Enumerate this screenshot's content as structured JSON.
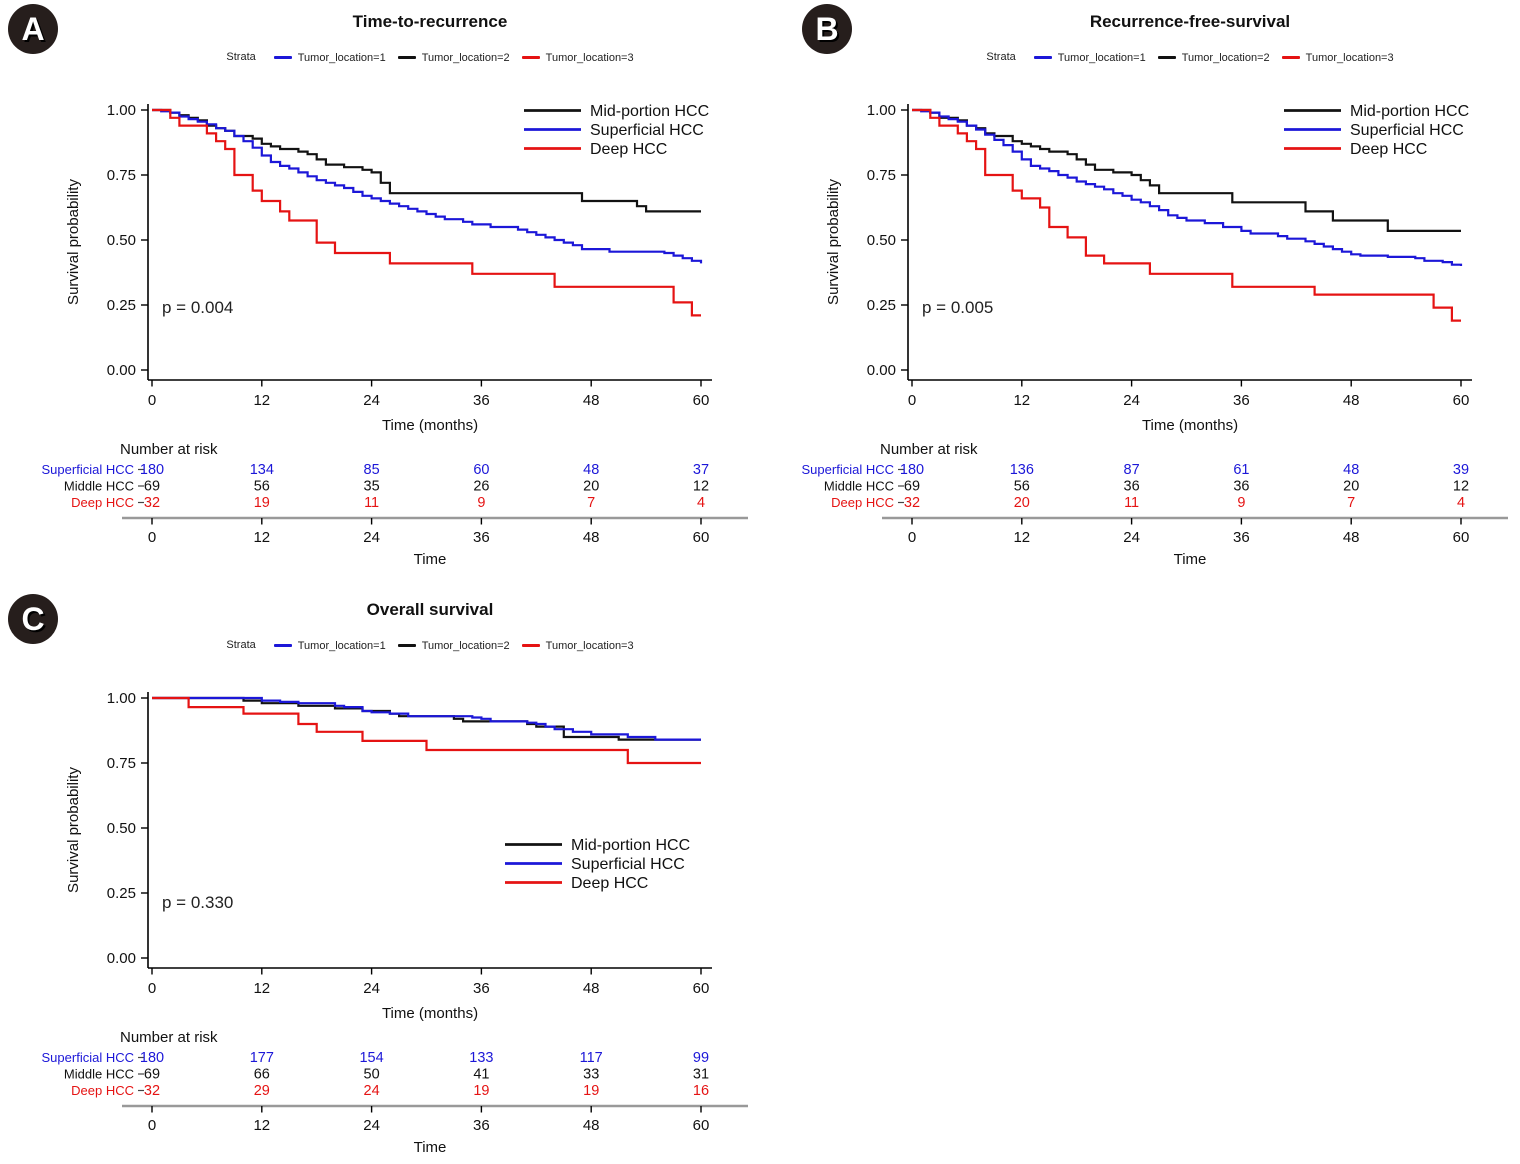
{
  "figure": {
    "background": "#ffffff",
    "colors": {
      "superficial": "#1c17d8",
      "mid_portion": "#121212",
      "deep": "#e51313",
      "table_rule": "#999999"
    }
  },
  "panels": [
    {
      "badge": "A",
      "strata_label": "Strata",
      "strata": [
        {
          "label": "Tumor_location=1",
          "color": "#1c17d8"
        },
        {
          "label": "Tumor_location=2",
          "color": "#121212"
        },
        {
          "label": "Tumor_location=3",
          "color": "#e51313"
        }
      ]
    },
    {
      "badge": "B",
      "strata_label": "Strata",
      "strata": [
        {
          "label": "Tumor_location=1",
          "color": "#1c17d8"
        },
        {
          "label": "Tumor_location=2",
          "color": "#121212"
        },
        {
          "label": "Tumor_location=3",
          "color": "#e51313"
        }
      ]
    },
    {
      "badge": "C",
      "strata_label": "Strata",
      "strata": [
        {
          "label": "Tumor_location=1",
          "color": "#1c17d8"
        },
        {
          "label": "Tumor_location=2",
          "color": "#121212"
        },
        {
          "label": "Tumor_location=3",
          "color": "#e51313"
        }
      ]
    }
  ],
  "chart_data": [
    {
      "id": "A",
      "type": "line",
      "step": true,
      "title": "Time-to-recurrence",
      "xlabel": "Time (months)",
      "ylabel": "Survival probability",
      "xlim": [
        0,
        60
      ],
      "ylim": [
        0,
        1
      ],
      "xticks": [
        0,
        12,
        24,
        36,
        48,
        60
      ],
      "ytick_labels": [
        "1.00",
        "0.75",
        "0.50",
        "0.25",
        "0.00"
      ],
      "p_value": "p = 0.004",
      "legend_position": "top-right",
      "series": [
        {
          "name": "Mid-portion HCC",
          "color": "#121212",
          "x": [
            0,
            2,
            3,
            4,
            5,
            6,
            7,
            8,
            9,
            11,
            12,
            13,
            14,
            16,
            17,
            18,
            19,
            21,
            23,
            24,
            25,
            26,
            47,
            53,
            54,
            60
          ],
          "y": [
            1.0,
            0.99,
            0.98,
            0.97,
            0.96,
            0.94,
            0.93,
            0.92,
            0.9,
            0.89,
            0.87,
            0.86,
            0.85,
            0.84,
            0.83,
            0.81,
            0.79,
            0.78,
            0.77,
            0.76,
            0.72,
            0.68,
            0.65,
            0.63,
            0.61,
            0.61
          ]
        },
        {
          "name": "Superficial HCC",
          "color": "#1c17d8",
          "x": [
            0,
            1,
            2,
            3,
            4,
            5,
            6,
            7,
            8,
            9,
            10,
            11,
            12,
            13,
            14,
            15,
            16,
            17,
            18,
            19,
            20,
            21,
            22,
            23,
            24,
            25,
            26,
            27,
            28,
            29,
            30,
            31,
            32,
            34,
            35,
            37,
            40,
            41,
            42,
            43,
            44,
            45,
            46,
            47,
            50,
            56,
            57,
            58,
            59,
            60
          ],
          "y": [
            1.0,
            0.995,
            0.99,
            0.975,
            0.965,
            0.955,
            0.945,
            0.93,
            0.92,
            0.9,
            0.88,
            0.855,
            0.825,
            0.8,
            0.785,
            0.775,
            0.76,
            0.745,
            0.73,
            0.72,
            0.71,
            0.7,
            0.685,
            0.67,
            0.66,
            0.65,
            0.64,
            0.63,
            0.62,
            0.61,
            0.6,
            0.59,
            0.58,
            0.57,
            0.56,
            0.55,
            0.54,
            0.53,
            0.52,
            0.51,
            0.5,
            0.49,
            0.48,
            0.465,
            0.455,
            0.45,
            0.44,
            0.43,
            0.42,
            0.41
          ]
        },
        {
          "name": "Deep HCC",
          "color": "#e51313",
          "x": [
            0,
            2,
            3,
            6,
            7,
            8,
            9,
            11,
            12,
            14,
            15,
            18,
            20,
            26,
            35,
            44,
            57,
            59,
            60
          ],
          "y": [
            1.0,
            0.97,
            0.94,
            0.91,
            0.88,
            0.85,
            0.75,
            0.69,
            0.65,
            0.61,
            0.575,
            0.49,
            0.45,
            0.41,
            0.37,
            0.32,
            0.26,
            0.21,
            0.21
          ]
        }
      ],
      "risk_table": {
        "heading": "Number at risk",
        "xlabel": "Time",
        "xticks": [
          0,
          12,
          24,
          36,
          48,
          60
        ],
        "rows": [
          {
            "label": "Superficial HCC",
            "color": "#1c17d8",
            "values": [
              180,
              134,
              85,
              60,
              48,
              37
            ]
          },
          {
            "label": "Middle HCC",
            "color": "#121212",
            "values": [
              69,
              56,
              35,
              26,
              20,
              12
            ]
          },
          {
            "label": "Deep HCC",
            "color": "#e51313",
            "values": [
              32,
              19,
              11,
              9,
              7,
              4
            ]
          }
        ]
      }
    },
    {
      "id": "B",
      "type": "line",
      "step": true,
      "title": "Recurrence-free-survival",
      "xlabel": "Time (months)",
      "ylabel": "Survival probability",
      "xlim": [
        0,
        60
      ],
      "ylim": [
        0,
        1
      ],
      "xticks": [
        0,
        12,
        24,
        36,
        48,
        60
      ],
      "ytick_labels": [
        "1.00",
        "0.75",
        "0.50",
        "0.25",
        "0.00"
      ],
      "p_value": "p = 0.005",
      "legend_position": "top-right",
      "series": [
        {
          "name": "Mid-portion HCC",
          "color": "#121212",
          "x": [
            0,
            2,
            3,
            5,
            6,
            7,
            8,
            9,
            11,
            12,
            13,
            14,
            15,
            17,
            18,
            19,
            20,
            22,
            24,
            25,
            26,
            27,
            35,
            43,
            46,
            52,
            60
          ],
          "y": [
            1.0,
            0.99,
            0.97,
            0.96,
            0.94,
            0.93,
            0.91,
            0.9,
            0.88,
            0.87,
            0.86,
            0.85,
            0.84,
            0.83,
            0.81,
            0.79,
            0.77,
            0.76,
            0.75,
            0.73,
            0.71,
            0.68,
            0.645,
            0.61,
            0.575,
            0.535,
            0.535
          ]
        },
        {
          "name": "Superficial HCC",
          "color": "#1c17d8",
          "x": [
            0,
            1,
            2,
            3,
            4,
            5,
            6,
            7,
            8,
            9,
            10,
            11,
            12,
            13,
            14,
            15,
            16,
            17,
            18,
            19,
            20,
            21,
            22,
            23,
            24,
            25,
            26,
            27,
            28,
            29,
            30,
            32,
            34,
            36,
            37,
            40,
            41,
            43,
            44,
            45,
            46,
            47,
            48,
            49,
            52,
            55,
            56,
            58,
            59,
            60
          ],
          "y": [
            1.0,
            0.995,
            0.99,
            0.975,
            0.965,
            0.955,
            0.94,
            0.925,
            0.905,
            0.885,
            0.865,
            0.84,
            0.81,
            0.785,
            0.775,
            0.765,
            0.75,
            0.74,
            0.725,
            0.715,
            0.705,
            0.695,
            0.68,
            0.67,
            0.655,
            0.645,
            0.63,
            0.615,
            0.595,
            0.585,
            0.575,
            0.565,
            0.55,
            0.535,
            0.525,
            0.515,
            0.505,
            0.495,
            0.485,
            0.475,
            0.465,
            0.455,
            0.445,
            0.44,
            0.435,
            0.43,
            0.42,
            0.415,
            0.405,
            0.4
          ]
        },
        {
          "name": "Deep HCC",
          "color": "#e51313",
          "x": [
            0,
            2,
            3,
            5,
            6,
            7,
            8,
            11,
            12,
            14,
            15,
            17,
            19,
            21,
            26,
            35,
            44,
            57,
            59,
            60
          ],
          "y": [
            1.0,
            0.97,
            0.94,
            0.91,
            0.88,
            0.85,
            0.75,
            0.69,
            0.66,
            0.625,
            0.55,
            0.51,
            0.44,
            0.41,
            0.37,
            0.32,
            0.29,
            0.24,
            0.19,
            0.19
          ]
        }
      ],
      "risk_table": {
        "heading": "Number at risk",
        "xlabel": "Time",
        "xticks": [
          0,
          12,
          24,
          36,
          48,
          60
        ],
        "rows": [
          {
            "label": "Superficial HCC",
            "color": "#1c17d8",
            "values": [
              180,
              136,
              87,
              61,
              48,
              39
            ]
          },
          {
            "label": "Middle HCC",
            "color": "#121212",
            "values": [
              69,
              56,
              36,
              36,
              20,
              12
            ]
          },
          {
            "label": "Deep HCC",
            "color": "#e51313",
            "values": [
              32,
              20,
              11,
              9,
              7,
              4
            ]
          }
        ]
      }
    },
    {
      "id": "C",
      "type": "line",
      "step": true,
      "title": "Overall survival",
      "xlabel": "Time (months)",
      "ylabel": "Survival probability",
      "xlim": [
        0,
        60
      ],
      "ylim": [
        0,
        1
      ],
      "xticks": [
        0,
        12,
        24,
        36,
        48,
        60
      ],
      "ytick_labels": [
        "1.00",
        "0.75",
        "0.50",
        "0.25",
        "0.00"
      ],
      "p_value": "p = 0.330",
      "legend_position": "middle-right",
      "series": [
        {
          "name": "Mid-portion HCC",
          "color": "#121212",
          "x": [
            0,
            10,
            12,
            16,
            20,
            23,
            26,
            27,
            33,
            34,
            41,
            42,
            45,
            51,
            60
          ],
          "y": [
            1.0,
            0.99,
            0.98,
            0.97,
            0.96,
            0.95,
            0.94,
            0.93,
            0.92,
            0.91,
            0.9,
            0.89,
            0.85,
            0.84,
            0.84
          ]
        },
        {
          "name": "Superficial HCC",
          "color": "#1c17d8",
          "x": [
            0,
            12,
            14,
            16,
            20,
            21,
            23,
            24,
            26,
            28,
            35,
            36,
            37,
            41,
            42,
            43,
            44,
            46,
            48,
            52,
            55,
            60
          ],
          "y": [
            1.0,
            0.99,
            0.985,
            0.98,
            0.97,
            0.965,
            0.95,
            0.945,
            0.94,
            0.93,
            0.925,
            0.92,
            0.91,
            0.905,
            0.9,
            0.89,
            0.88,
            0.87,
            0.86,
            0.85,
            0.84,
            0.84
          ]
        },
        {
          "name": "Deep HCC",
          "color": "#e51313",
          "x": [
            0,
            4,
            10,
            16,
            18,
            23,
            30,
            52,
            60
          ],
          "y": [
            1.0,
            0.965,
            0.94,
            0.9,
            0.87,
            0.835,
            0.8,
            0.75,
            0.75
          ]
        }
      ],
      "risk_table": {
        "heading": "Number at risk",
        "xlabel": "Time",
        "xticks": [
          0,
          12,
          24,
          36,
          48,
          60
        ],
        "rows": [
          {
            "label": "Superficial HCC",
            "color": "#1c17d8",
            "values": [
              180,
              177,
              154,
              133,
              117,
              99
            ]
          },
          {
            "label": "Middle HCC",
            "color": "#121212",
            "values": [
              69,
              66,
              50,
              41,
              33,
              31
            ]
          },
          {
            "label": "Deep HCC",
            "color": "#e51313",
            "values": [
              32,
              29,
              24,
              19,
              19,
              16
            ]
          }
        ]
      }
    }
  ]
}
